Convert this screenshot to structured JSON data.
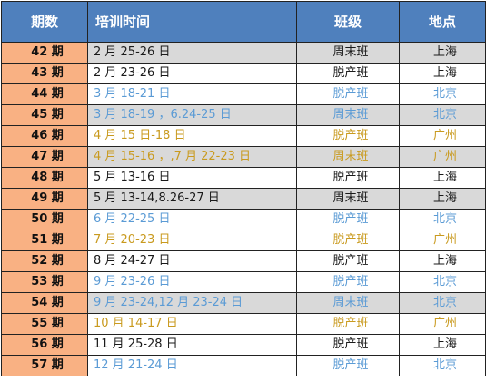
{
  "headers": {
    "period": "期数",
    "time": "培训时间",
    "class": "班级",
    "location": "地点"
  },
  "colors": {
    "header_bg": "#4f80bd",
    "period_bg": "#f9b183",
    "grey_row_bg": "#d9d9d9",
    "black_text": "#1a1a1a",
    "blue_text": "#5b9bd5",
    "gold_text": "#c99a1e"
  },
  "rows": [
    {
      "period": "42 期",
      "time": "2 月 25-26 日",
      "class": "周末班",
      "location": "上海",
      "color": "black",
      "grey": true
    },
    {
      "period": "43 期",
      "time": "2 月 23-26 日",
      "class": "脱产班",
      "location": "上海",
      "color": "black",
      "grey": false
    },
    {
      "period": "44 期",
      "time": "3 月 18-21 日",
      "class": "脱产班",
      "location": "北京",
      "color": "blue",
      "grey": false
    },
    {
      "period": "45 期",
      "time": "3 月 18-19 ，6.24-25 日",
      "class": "周末班",
      "location": "北京",
      "color": "blue",
      "grey": true
    },
    {
      "period": "46 期",
      "time": "4 月 15 日-18 日",
      "class": "脱产班",
      "location": "广州",
      "color": "gold",
      "grey": false
    },
    {
      "period": "47 期",
      "time": "4 月 15-16 ，,7 月 22-23 日",
      "class": "周末班",
      "location": "广州",
      "color": "gold",
      "grey": true
    },
    {
      "period": "48 期",
      "time": "5 月 13-16 日",
      "class": "脱产班",
      "location": "上海",
      "color": "black",
      "grey": false
    },
    {
      "period": "49 期",
      "time": "5 月 13-14,8.26-27 日",
      "class": "周末班",
      "location": "上海",
      "color": "black",
      "grey": true
    },
    {
      "period": "50 期",
      "time": "6 月 22-25 日",
      "class": "脱产班",
      "location": "北京",
      "color": "blue",
      "grey": false
    },
    {
      "period": "51 期",
      "time": "7 月 20-23 日",
      "class": "脱产班",
      "location": "广州",
      "color": "gold",
      "grey": false
    },
    {
      "period": "52 期",
      "time": "8 月 24-27 日",
      "class": "脱产班",
      "location": "上海",
      "color": "black",
      "grey": false
    },
    {
      "period": "53 期",
      "time": "9 月 23-26 日",
      "class": "脱产班",
      "location": "北京",
      "color": "blue",
      "grey": false
    },
    {
      "period": "54 期",
      "time": "9 月 23-24,12 月 23-24 日",
      "class": "周末班",
      "location": "北京",
      "color": "blue",
      "grey": true
    },
    {
      "period": "55 期",
      "time": "10 月 14-17 日",
      "class": "脱产班",
      "location": "广州",
      "color": "gold",
      "grey": false
    },
    {
      "period": "56 期",
      "time": "11 月 25-28 日",
      "class": "脱产班",
      "location": "上海",
      "color": "black",
      "grey": false
    },
    {
      "period": "57 期",
      "time": "12 月 21-24 日",
      "class": "脱产班",
      "location": "北京",
      "color": "blue",
      "grey": false
    }
  ]
}
